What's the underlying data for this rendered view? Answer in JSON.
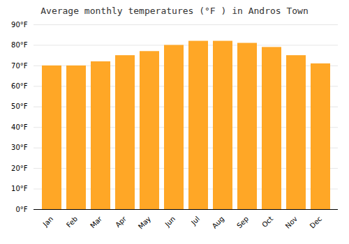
{
  "chart_data": {
    "type": "bar",
    "title": "Average monthly temperatures (°F ) in Andros Town",
    "categories": [
      "Jan",
      "Feb",
      "Mar",
      "Apr",
      "May",
      "Jun",
      "Jul",
      "Aug",
      "Sep",
      "Oct",
      "Nov",
      "Dec"
    ],
    "values": [
      70,
      70,
      72,
      75,
      77,
      80,
      82,
      82,
      81,
      79,
      75,
      71
    ],
    "color": "#FFA726",
    "ylim": [
      0,
      90
    ],
    "yticks": [
      {
        "value": 0,
        "label": "0°F"
      },
      {
        "value": 10,
        "label": "10°F"
      },
      {
        "value": 20,
        "label": "20°F"
      },
      {
        "value": 30,
        "label": "30°F"
      },
      {
        "value": 40,
        "label": "40°F"
      },
      {
        "value": 50,
        "label": "50°F"
      },
      {
        "value": 60,
        "label": "60°F"
      },
      {
        "value": 70,
        "label": "70°F"
      },
      {
        "value": 80,
        "label": "80°F"
      },
      {
        "value": 90,
        "label": "90°F"
      }
    ],
    "grid": true
  }
}
